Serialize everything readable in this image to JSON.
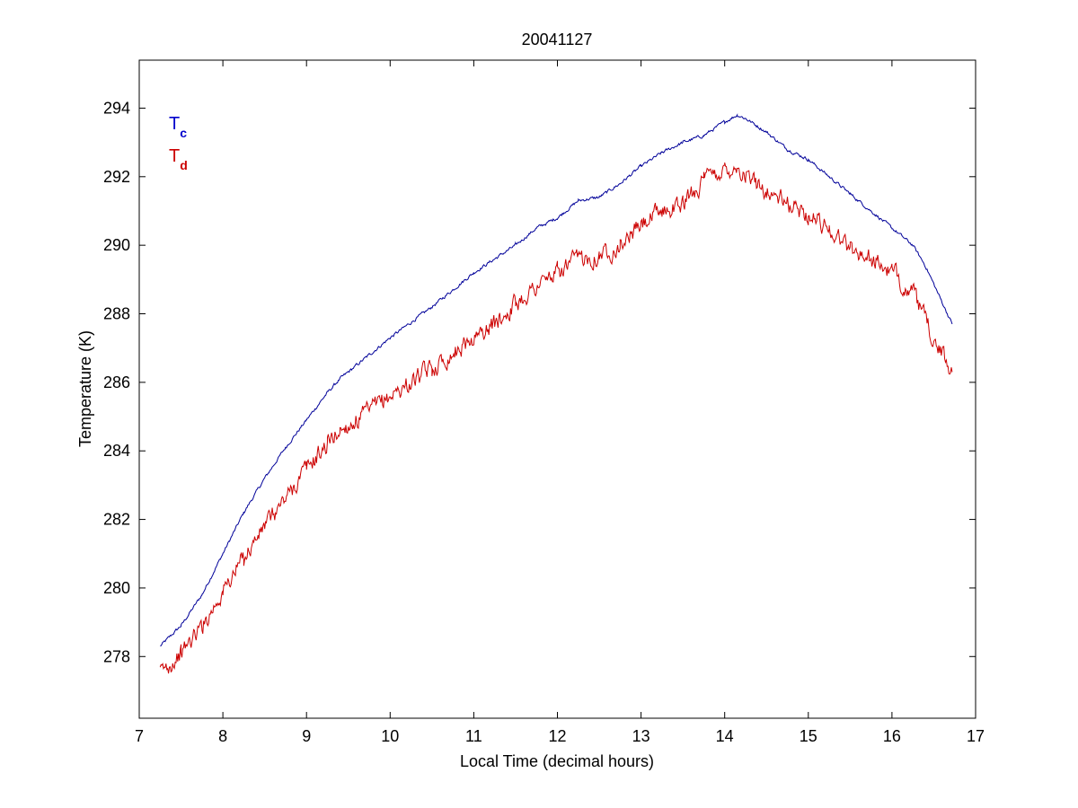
{
  "chart_data": {
    "type": "line",
    "title": "20041127",
    "xlabel": "Local Time (decimal hours)",
    "ylabel": "Temperature (K)",
    "xlim": [
      7,
      17
    ],
    "ylim": [
      276.2,
      295.4
    ],
    "xticks": [
      7,
      8,
      9,
      10,
      11,
      12,
      13,
      14,
      15,
      16,
      17
    ],
    "yticks": [
      278,
      280,
      282,
      284,
      286,
      288,
      290,
      292,
      294
    ],
    "grid": false,
    "legend": {
      "placement": "top-left",
      "entries": [
        {
          "base": "T",
          "sub": "c",
          "color": "#0000cc"
        },
        {
          "base": "T",
          "sub": "d",
          "color": "#cc0000"
        }
      ]
    },
    "series": [
      {
        "color": "#000099",
        "noise": 0.04,
        "x": [
          7.25,
          7.5,
          7.75,
          8.0,
          8.25,
          8.5,
          8.75,
          9.0,
          9.25,
          9.4,
          9.6,
          10.0,
          10.5,
          11.0,
          11.25,
          11.5,
          11.75,
          12.0,
          12.25,
          12.5,
          12.75,
          13.0,
          13.25,
          13.5,
          13.75,
          14.0,
          14.15,
          14.25,
          14.5,
          14.75,
          15.0,
          15.25,
          15.5,
          15.75,
          16.0,
          16.25,
          16.4,
          16.55,
          16.72
        ],
        "y": [
          278.3,
          278.9,
          279.8,
          281.0,
          282.2,
          283.2,
          284.1,
          284.9,
          285.7,
          286.1,
          286.5,
          287.3,
          288.2,
          289.2,
          289.6,
          290.0,
          290.5,
          290.8,
          291.3,
          291.4,
          291.8,
          292.3,
          292.7,
          293.0,
          293.2,
          293.6,
          293.8,
          293.7,
          293.3,
          292.8,
          292.5,
          292.0,
          291.5,
          291.0,
          290.5,
          290.0,
          289.4,
          288.6,
          287.7
        ]
      },
      {
        "color": "#cc0000",
        "noise": 0.22,
        "x": [
          7.25,
          7.5,
          7.75,
          8.0,
          8.25,
          8.5,
          8.75,
          9.0,
          9.25,
          9.4,
          9.6,
          10.0,
          10.5,
          11.0,
          11.25,
          11.5,
          11.75,
          12.0,
          12.25,
          12.5,
          12.75,
          13.0,
          13.25,
          13.5,
          13.75,
          14.0,
          14.15,
          14.25,
          14.5,
          14.75,
          15.0,
          15.25,
          15.5,
          15.75,
          16.0,
          16.25,
          16.4,
          16.55,
          16.72
        ],
        "y": [
          277.5,
          278.1,
          278.9,
          279.9,
          280.9,
          281.8,
          282.6,
          283.5,
          284.2,
          284.6,
          284.9,
          285.6,
          286.4,
          287.3,
          287.7,
          288.3,
          288.8,
          289.2,
          289.6,
          289.7,
          290.0,
          290.6,
          291.0,
          291.2,
          291.9,
          292.2,
          292.3,
          292.0,
          291.6,
          291.2,
          290.9,
          290.5,
          289.9,
          289.6,
          289.2,
          288.6,
          287.8,
          287.0,
          286.3
        ]
      }
    ]
  }
}
